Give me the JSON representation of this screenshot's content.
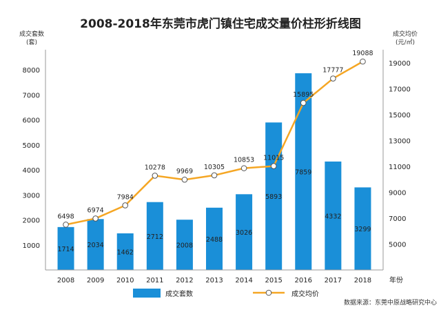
{
  "chart_data": {
    "type": "bar+line",
    "title": "2008-2018年东莞市虎门镇住宅成交量价柱形折线图",
    "categories": [
      "2008",
      "2009",
      "2010",
      "2011",
      "2012",
      "2013",
      "2014",
      "2015",
      "2016",
      "2017",
      "2018"
    ],
    "series": [
      {
        "name": "成交套数",
        "type": "bar",
        "axis": "left",
        "color": "#1a8fd8",
        "values": [
          1714,
          2034,
          1462,
          2712,
          2008,
          2488,
          3026,
          5893,
          7859,
          4332,
          3299
        ]
      },
      {
        "name": "成交均价",
        "type": "line",
        "axis": "right",
        "color": "#f5a623",
        "values": [
          6498,
          6974,
          7984,
          10278,
          9969,
          10305,
          10853,
          11015,
          15895,
          17777,
          19088
        ]
      }
    ],
    "left_axis": {
      "label_line1": "成交套数",
      "label_line2": "(套)",
      "ylim": [
        0,
        8800
      ],
      "ticks": [
        1000,
        2000,
        3000,
        4000,
        5000,
        6000,
        7000,
        8000
      ]
    },
    "right_axis": {
      "label_line1": "成交均价",
      "label_line2": "(元/㎡)",
      "ylim": [
        3000,
        20000
      ],
      "ticks": [
        5000,
        7000,
        9000,
        11000,
        13000,
        15000,
        17000,
        19000
      ]
    },
    "x_axis_label": "年份",
    "legend_position": "bottom",
    "grid": false
  },
  "source": "数据来源：东莞中原战略研究中心"
}
